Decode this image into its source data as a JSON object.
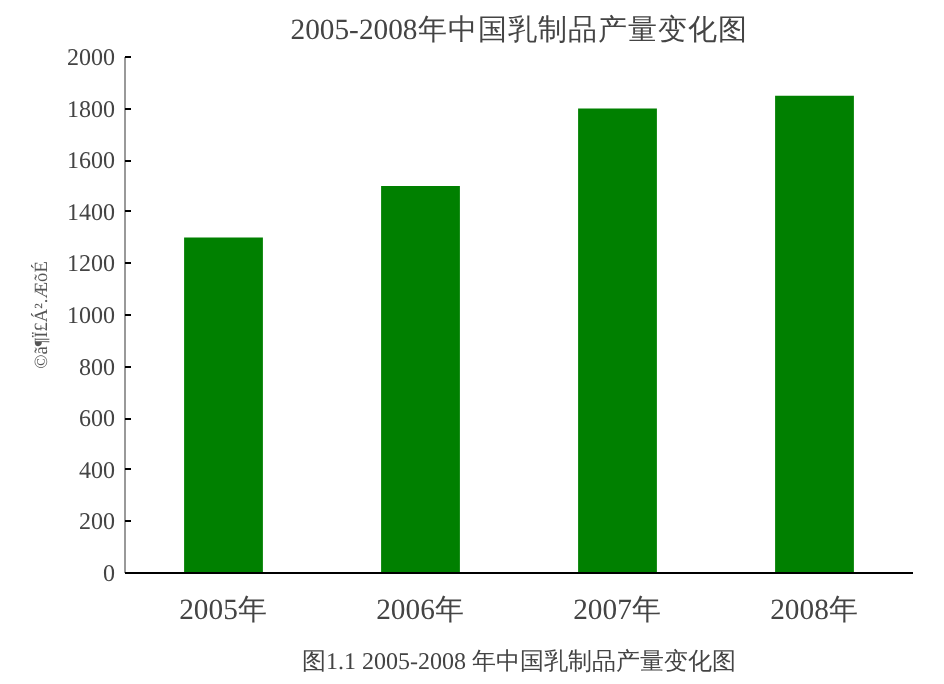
{
  "chart_data": {
    "type": "bar",
    "title": "2005-2008年中国乳制品产量变化图",
    "ylabel": "©ã¶Ï£Á².ÆõÉ",
    "categories": [
      "2005年",
      "2006年",
      "2007年",
      "2008年"
    ],
    "values": [
      1300,
      1500,
      1800,
      1850
    ],
    "color": "#008000",
    "ylim": [
      0,
      2000
    ],
    "yticks": [
      0,
      200,
      400,
      600,
      800,
      1000,
      1200,
      1400,
      1600,
      1800,
      2000
    ],
    "grid": false,
    "annotations": [
      "图1.1 2005-2008 年中国乳制品产量变化图"
    ]
  }
}
